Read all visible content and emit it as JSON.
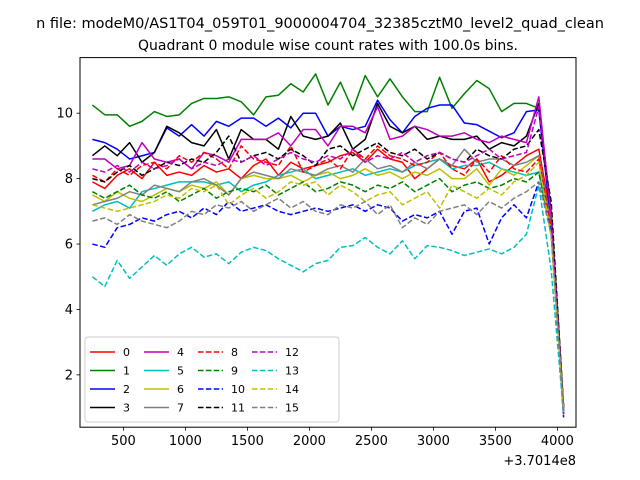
{
  "suptitle": "n file: modeM0/AS1T04_059T01_9000004704_32385cztM0_level2_quad_clean",
  "chart_data": {
    "type": "line",
    "title": "Quadrant 0 module wise count rates with 100.0s bins.",
    "xlabel": "",
    "ylabel": "",
    "x_offset_label": "+3.7014e8",
    "x": [
      250,
      350,
      450,
      550,
      650,
      750,
      850,
      950,
      1050,
      1150,
      1250,
      1350,
      1450,
      1550,
      1650,
      1750,
      1850,
      1950,
      2050,
      2150,
      2250,
      2350,
      2450,
      2550,
      2650,
      2750,
      2850,
      2950,
      3050,
      3150,
      3250,
      3350,
      3450,
      3550,
      3650,
      3750,
      3850,
      3950,
      4050
    ],
    "xlim": [
      150,
      4150
    ],
    "ylim": [
      0.4,
      11.7
    ],
    "xticks": [
      500,
      1000,
      1500,
      2000,
      2500,
      3000,
      3500,
      4000
    ],
    "xtick_labels": [
      "500",
      "1000",
      "1500",
      "2000",
      "2500",
      "3000",
      "3500",
      "4000"
    ],
    "yticks": [
      2,
      4,
      6,
      8,
      10
    ],
    "ytick_labels": [
      "2",
      "4",
      "6",
      "8",
      "10"
    ],
    "grid": false,
    "legend_position": "lower-left",
    "legend_columns": 4,
    "series": [
      {
        "name": "0",
        "color": "#ff0000",
        "style": "solid",
        "values": [
          7.9,
          7.7,
          8.1,
          8.3,
          8.0,
          8.5,
          8.1,
          8.2,
          8.1,
          8.4,
          8.2,
          8.3,
          8.0,
          8.4,
          8.6,
          8.1,
          8.5,
          8.3,
          8.4,
          8.5,
          8.7,
          8.8,
          8.5,
          8.9,
          8.6,
          8.5,
          8.0,
          8.3,
          8.6,
          8.4,
          8.3,
          8.6,
          7.9,
          8.1,
          8.4,
          8.7,
          8.9,
          6.8,
          1.0
        ]
      },
      {
        "name": "1",
        "color": "#008000",
        "style": "solid",
        "values": [
          10.25,
          9.95,
          9.95,
          9.6,
          9.75,
          10.05,
          9.9,
          9.95,
          10.3,
          10.45,
          10.45,
          10.5,
          10.35,
          9.95,
          10.5,
          10.55,
          10.9,
          10.65,
          11.2,
          10.25,
          10.95,
          10.1,
          11.15,
          10.5,
          11.05,
          10.5,
          10.05,
          10.05,
          11.1,
          10.15,
          10.6,
          11.0,
          10.75,
          10.05,
          10.3,
          10.3,
          10.15,
          7.0,
          1.0
        ]
      },
      {
        "name": "2",
        "color": "#0000ff",
        "style": "solid",
        "values": [
          9.2,
          9.1,
          8.9,
          8.6,
          8.7,
          8.8,
          9.55,
          9.3,
          9.65,
          9.3,
          9.75,
          9.6,
          9.85,
          9.85,
          9.6,
          9.85,
          9.55,
          10.0,
          10.0,
          9.3,
          9.6,
          9.5,
          9.6,
          10.4,
          9.8,
          9.4,
          9.9,
          10.15,
          10.25,
          10.25,
          9.7,
          9.65,
          9.45,
          9.25,
          9.4,
          10.05,
          10.1,
          6.6,
          0.8
        ]
      },
      {
        "name": "3",
        "color": "#000000",
        "style": "solid",
        "values": [
          8.7,
          9.0,
          8.7,
          9.1,
          8.5,
          8.8,
          9.6,
          9.4,
          9.1,
          9.0,
          9.5,
          8.6,
          9.5,
          9.2,
          9.2,
          8.9,
          9.9,
          9.3,
          9.2,
          9.3,
          9.7,
          8.9,
          9.2,
          10.3,
          9.6,
          9.4,
          9.6,
          9.2,
          9.3,
          9.2,
          9.2,
          9.3,
          8.9,
          9.1,
          9.0,
          9.3,
          10.3,
          6.9,
          0.9
        ]
      },
      {
        "name": "4",
        "color": "#bf00bf",
        "style": "solid",
        "values": [
          8.6,
          8.6,
          8.3,
          8.4,
          9.1,
          8.6,
          8.5,
          8.6,
          8.3,
          8.8,
          8.7,
          8.5,
          9.2,
          9.2,
          9.2,
          9.4,
          9.0,
          9.5,
          9.5,
          9.0,
          9.6,
          9.6,
          9.4,
          10.2,
          9.2,
          9.3,
          9.6,
          9.5,
          9.3,
          9.3,
          9.4,
          9.2,
          9.1,
          9.3,
          9.2,
          9.1,
          10.5,
          6.8,
          0.8
        ]
      },
      {
        "name": "5",
        "color": "#00bfbf",
        "style": "solid",
        "values": [
          7.0,
          7.2,
          7.3,
          7.1,
          7.6,
          7.7,
          7.8,
          7.9,
          7.9,
          7.9,
          7.8,
          7.9,
          7.6,
          7.8,
          7.9,
          8.1,
          8.2,
          8.3,
          8.0,
          8.1,
          8.2,
          8.3,
          8.1,
          8.2,
          8.3,
          8.2,
          8.4,
          8.5,
          8.6,
          8.3,
          8.4,
          8.4,
          8.5,
          8.3,
          8.2,
          8.1,
          8.2,
          6.5,
          0.9
        ]
      },
      {
        "name": "6",
        "color": "#bfbf00",
        "style": "solid",
        "values": [
          7.5,
          7.3,
          7.6,
          7.4,
          7.3,
          7.5,
          7.7,
          7.6,
          7.8,
          7.7,
          7.9,
          7.5,
          8.0,
          8.1,
          8.0,
          8.0,
          8.1,
          7.9,
          8.1,
          8.2,
          8.0,
          8.1,
          8.3,
          8.1,
          8.2,
          8.0,
          8.2,
          8.1,
          8.3,
          8.0,
          8.0,
          8.3,
          7.8,
          8.3,
          8.1,
          8.4,
          8.7,
          6.4,
          0.9
        ]
      },
      {
        "name": "7",
        "color": "#808080",
        "style": "solid",
        "values": [
          7.2,
          7.3,
          7.4,
          7.6,
          7.5,
          7.8,
          7.7,
          7.6,
          7.9,
          8.0,
          7.8,
          7.5,
          8.0,
          8.2,
          8.1,
          8.0,
          8.3,
          8.2,
          8.1,
          8.3,
          8.4,
          8.2,
          8.6,
          8.3,
          8.4,
          8.2,
          8.5,
          8.3,
          8.6,
          8.4,
          8.9,
          8.5,
          8.6,
          8.6,
          8.4,
          8.5,
          8.7,
          6.6,
          0.9
        ]
      },
      {
        "name": "8",
        "color": "#ff0000",
        "style": "dashed",
        "values": [
          8.1,
          7.9,
          8.3,
          8.1,
          8.4,
          8.5,
          8.3,
          8.7,
          8.5,
          8.8,
          8.6,
          8.3,
          9.0,
          8.6,
          8.5,
          8.4,
          9.0,
          8.2,
          8.4,
          8.6,
          8.3,
          8.9,
          8.6,
          9.0,
          8.7,
          8.6,
          8.4,
          8.5,
          8.8,
          8.3,
          8.1,
          8.6,
          8.2,
          8.7,
          8.3,
          8.2,
          8.6,
          6.5,
          1.0
        ]
      },
      {
        "name": "9",
        "color": "#008000",
        "style": "dashed",
        "values": [
          7.6,
          7.4,
          7.6,
          7.8,
          7.5,
          7.4,
          7.6,
          7.3,
          7.5,
          7.7,
          7.4,
          7.6,
          7.7,
          7.6,
          7.8,
          7.5,
          7.7,
          7.9,
          7.6,
          7.7,
          7.9,
          7.8,
          7.6,
          7.8,
          7.7,
          7.9,
          7.6,
          7.8,
          8.0,
          7.6,
          7.8,
          7.9,
          7.7,
          7.8,
          8.0,
          7.9,
          8.2,
          6.3,
          0.9
        ]
      },
      {
        "name": "10",
        "color": "#0000ff",
        "style": "dashed",
        "values": [
          6.0,
          5.9,
          6.5,
          6.6,
          6.8,
          6.7,
          6.9,
          7.0,
          6.8,
          7.1,
          6.9,
          7.3,
          7.0,
          7.1,
          7.2,
          7.0,
          6.9,
          7.0,
          7.1,
          7.0,
          7.1,
          7.2,
          7.0,
          7.2,
          7.1,
          6.7,
          6.9,
          6.8,
          7.0,
          6.3,
          7.0,
          7.1,
          6.0,
          6.8,
          7.2,
          6.8,
          7.9,
          6.4,
          0.7
        ]
      },
      {
        "name": "11",
        "color": "#000000",
        "style": "dashed",
        "values": [
          8.0,
          7.9,
          8.2,
          8.4,
          8.1,
          8.3,
          8.5,
          8.4,
          8.6,
          8.5,
          8.8,
          9.3,
          8.5,
          8.7,
          8.8,
          8.6,
          8.9,
          8.7,
          8.4,
          8.9,
          9.0,
          8.7,
          8.9,
          9.1,
          8.8,
          8.7,
          8.9,
          8.6,
          8.8,
          8.6,
          8.5,
          8.9,
          8.7,
          8.6,
          8.9,
          9.0,
          9.5,
          7.3,
          1.0
        ]
      },
      {
        "name": "12",
        "color": "#bf00bf",
        "style": "dashed",
        "values": [
          8.3,
          8.2,
          8.4,
          8.2,
          8.5,
          8.3,
          8.4,
          8.6,
          8.3,
          8.5,
          8.4,
          8.6,
          8.5,
          8.7,
          8.4,
          8.6,
          8.8,
          8.6,
          8.5,
          8.7,
          8.6,
          8.9,
          8.5,
          8.7,
          8.6,
          8.8,
          8.5,
          8.7,
          8.8,
          8.6,
          8.5,
          8.7,
          8.9,
          8.6,
          8.7,
          8.8,
          10.2,
          6.9,
          0.9
        ]
      },
      {
        "name": "13",
        "color": "#00bfbf",
        "style": "dashed",
        "values": [
          5.0,
          4.7,
          5.5,
          4.95,
          5.3,
          5.65,
          5.35,
          5.7,
          5.9,
          5.6,
          5.7,
          5.4,
          5.75,
          5.9,
          5.8,
          5.55,
          5.35,
          5.15,
          5.4,
          5.5,
          5.9,
          5.95,
          6.2,
          5.9,
          5.7,
          6.1,
          5.55,
          5.95,
          5.9,
          5.8,
          5.65,
          5.75,
          5.85,
          5.7,
          5.9,
          6.3,
          7.8,
          5.2,
          0.8
        ]
      },
      {
        "name": "14",
        "color": "#bfbf00",
        "style": "dashed",
        "values": [
          7.2,
          7.1,
          7.0,
          7.1,
          7.2,
          7.3,
          7.5,
          7.4,
          7.7,
          7.6,
          7.8,
          7.2,
          7.5,
          7.7,
          7.4,
          7.6,
          7.9,
          7.8,
          7.9,
          7.5,
          7.8,
          7.6,
          7.3,
          7.5,
          7.6,
          7.2,
          7.4,
          7.6,
          7.1,
          7.8,
          7.6,
          7.4,
          7.7,
          7.5,
          7.9,
          8.1,
          8.5,
          6.2,
          0.9
        ]
      },
      {
        "name": "15",
        "color": "#808080",
        "style": "dashed",
        "values": [
          6.7,
          6.8,
          6.6,
          6.9,
          6.7,
          6.6,
          6.5,
          6.7,
          7.0,
          6.9,
          7.2,
          7.1,
          7.3,
          7.0,
          7.2,
          7.4,
          7.1,
          7.3,
          7.0,
          6.9,
          7.2,
          7.1,
          7.3,
          6.9,
          7.2,
          6.5,
          6.8,
          6.6,
          7.0,
          7.1,
          7.2,
          6.9,
          7.3,
          7.1,
          7.4,
          7.6,
          7.9,
          6.3,
          0.9
        ]
      }
    ]
  }
}
